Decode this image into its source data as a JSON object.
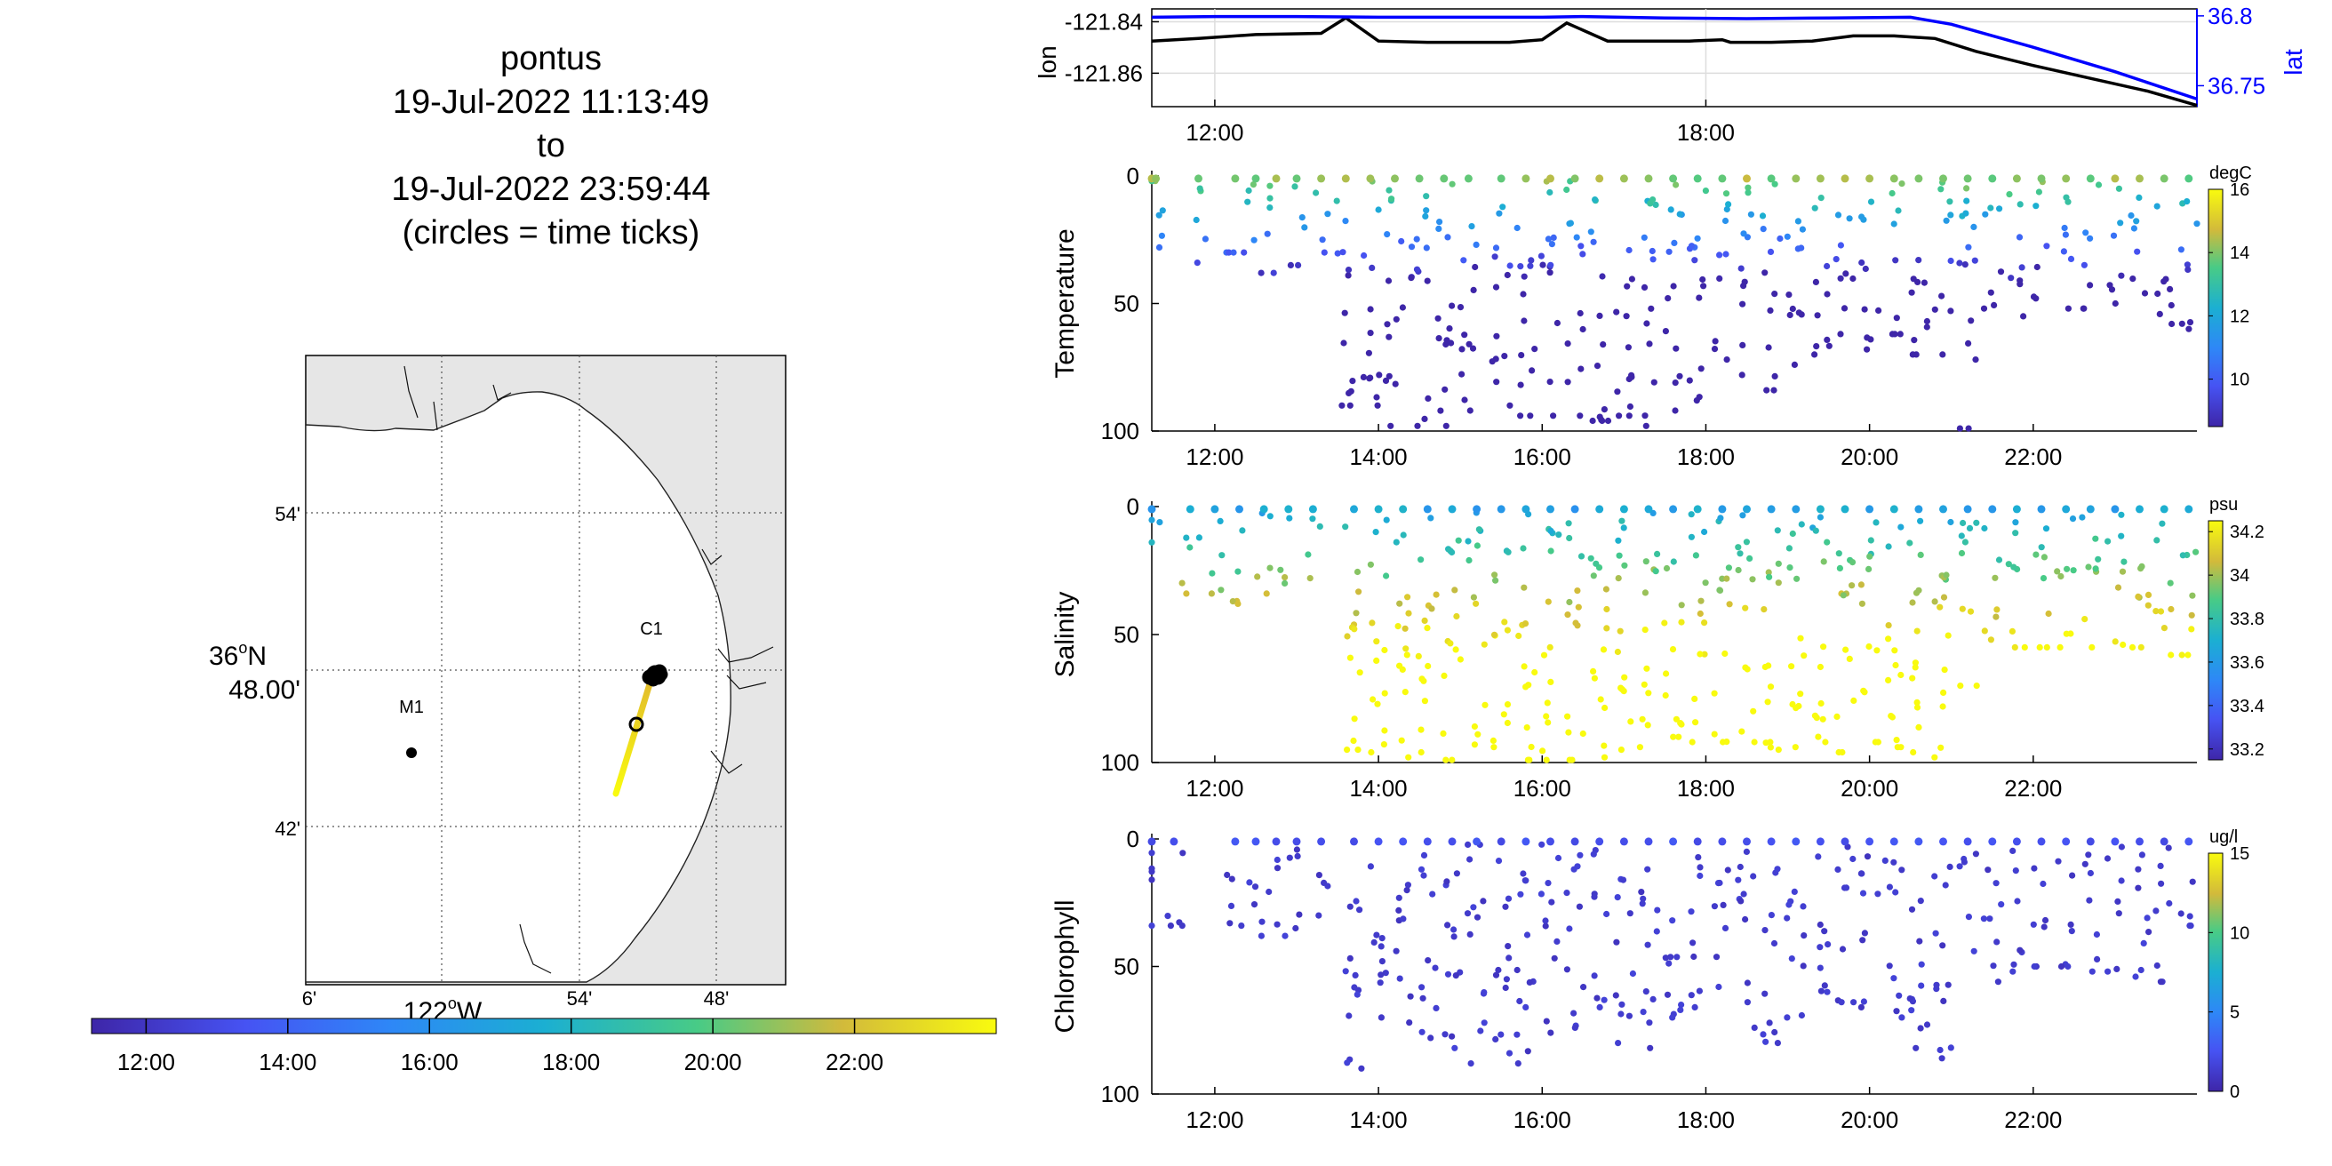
{
  "title": {
    "line1": "pontus",
    "line2": "19-Jul-2022 11:13:49",
    "line3": "to",
    "line4": "19-Jul-2022 23:59:44",
    "line5": "(circles = time ticks)"
  },
  "map": {
    "lat_labels": [
      "54'",
      "36°N 48.00'",
      "42'"
    ],
    "lat_label_main": "36",
    "lat_label_deg": "o",
    "lat_label_n": "N",
    "lat_label_min": "48.00'",
    "lon_labels": [
      "6'",
      "54'",
      "48'"
    ],
    "lon_label_main": "122",
    "lon_label_deg": "o",
    "lon_label_w": "W",
    "stations": [
      {
        "name": "M1"
      },
      {
        "name": "C1"
      }
    ],
    "colors": {
      "land": "#e6e6e6",
      "water": "#ffffff",
      "track_start": "#e1b92e",
      "track_end": "#f9fb0e"
    }
  },
  "time_colorbar": {
    "ticks": [
      "12:00",
      "14:00",
      "16:00",
      "18:00",
      "20:00",
      "22:00"
    ],
    "colormap": "parula"
  },
  "chart_data": [
    {
      "type": "line",
      "name": "position",
      "x_ticks": [
        "12:00",
        "18:00"
      ],
      "xlim_hours": [
        11.23,
        24.0
      ],
      "left_axis": {
        "label": "lon",
        "ticks": [
          "-121.84",
          "-121.86"
        ],
        "ylim": [
          -121.873,
          -121.835
        ]
      },
      "right_axis": {
        "label": "lat",
        "ticks": [
          "36.8",
          "36.75"
        ],
        "ylim": [
          36.735,
          36.805
        ],
        "color": "#0000ff"
      },
      "series": [
        {
          "name": "lon",
          "color": "#000000",
          "x": [
            11.23,
            11.8,
            12.5,
            13.3,
            13.6,
            14.0,
            14.6,
            15.1,
            15.6,
            16.0,
            16.3,
            16.8,
            17.3,
            17.8,
            18.2,
            18.3,
            18.8,
            19.3,
            19.8,
            20.3,
            20.8,
            21.3,
            22.0,
            22.7,
            23.4,
            24.0
          ],
          "y": [
            -121.8475,
            -121.8465,
            -121.845,
            -121.8445,
            -121.8385,
            -121.8475,
            -121.848,
            -121.848,
            -121.848,
            -121.847,
            -121.8405,
            -121.8475,
            -121.8475,
            -121.8475,
            -121.847,
            -121.848,
            -121.848,
            -121.8475,
            -121.8455,
            -121.8455,
            -121.8465,
            -121.8515,
            -121.857,
            -121.862,
            -121.867,
            -121.8725
          ]
        },
        {
          "name": "lat",
          "color": "#0000ff",
          "x": [
            11.23,
            12.0,
            13.0,
            14.0,
            15.0,
            16.0,
            16.5,
            17.5,
            18.5,
            19.5,
            20.5,
            21.0,
            22.0,
            23.0,
            24.0
          ],
          "y": [
            36.799,
            36.7995,
            36.7995,
            36.799,
            36.799,
            36.799,
            36.7995,
            36.7985,
            36.798,
            36.7985,
            36.799,
            36.794,
            36.7775,
            36.76,
            36.7405
          ]
        }
      ]
    },
    {
      "type": "scatter",
      "name": "Temperature",
      "ylabel": "Temperature",
      "unit": "degC",
      "y_ticks": [
        "0",
        "50",
        "100"
      ],
      "ylim": [
        0,
        100
      ],
      "y_reversed": true,
      "x_ticks": [
        "12:00",
        "14:00",
        "16:00",
        "18:00",
        "20:00",
        "22:00"
      ],
      "xlim_hours": [
        11.23,
        24.0
      ],
      "colorbar": {
        "ticks": [
          "16",
          "14",
          "12",
          "10"
        ],
        "clim": [
          8.5,
          16
        ]
      },
      "sampling": "yo-yo depth profiles: near-surface warm (~15 degC), cooling to ~9 degC at depth",
      "columns": [
        {
          "t": 11.23,
          "max_depth": 2
        },
        {
          "t": 11.28,
          "max_depth": 28
        },
        {
          "t": 11.8,
          "max_depth": 34
        },
        {
          "t": 12.25,
          "max_depth": 30
        },
        {
          "t": 12.5,
          "max_depth": 38
        },
        {
          "t": 12.75,
          "max_depth": 38
        },
        {
          "t": 13.0,
          "max_depth": 35
        },
        {
          "t": 13.3,
          "max_depth": 30
        },
        {
          "t": 13.6,
          "max_depth": 90
        },
        {
          "t": 13.9,
          "max_depth": 90
        },
        {
          "t": 14.2,
          "max_depth": 98
        },
        {
          "t": 14.5,
          "max_depth": 98
        },
        {
          "t": 14.8,
          "max_depth": 98
        },
        {
          "t": 15.1,
          "max_depth": 92
        },
        {
          "t": 15.5,
          "max_depth": 90
        },
        {
          "t": 15.8,
          "max_depth": 94
        },
        {
          "t": 16.1,
          "max_depth": 94
        },
        {
          "t": 16.4,
          "max_depth": 94
        },
        {
          "t": 16.7,
          "max_depth": 96
        },
        {
          "t": 17.0,
          "max_depth": 94
        },
        {
          "t": 17.3,
          "max_depth": 98
        },
        {
          "t": 17.6,
          "max_depth": 92
        },
        {
          "t": 17.9,
          "max_depth": 88
        },
        {
          "t": 18.2,
          "max_depth": 72
        },
        {
          "t": 18.5,
          "max_depth": 78
        },
        {
          "t": 18.8,
          "max_depth": 84
        },
        {
          "t": 19.1,
          "max_depth": 74
        },
        {
          "t": 19.4,
          "max_depth": 70
        },
        {
          "t": 19.7,
          "max_depth": 62
        },
        {
          "t": 20.0,
          "max_depth": 68
        },
        {
          "t": 20.3,
          "max_depth": 62
        },
        {
          "t": 20.6,
          "max_depth": 70
        },
        {
          "t": 20.9,
          "max_depth": 70
        },
        {
          "t": 21.2,
          "max_depth": 99
        },
        {
          "t": 21.5,
          "max_depth": 52
        },
        {
          "t": 21.8,
          "max_depth": 55
        },
        {
          "t": 22.1,
          "max_depth": 48
        },
        {
          "t": 22.4,
          "max_depth": 52
        },
        {
          "t": 22.7,
          "max_depth": 52
        },
        {
          "t": 23.0,
          "max_depth": 50
        },
        {
          "t": 23.3,
          "max_depth": 46
        },
        {
          "t": 23.6,
          "max_depth": 58
        },
        {
          "t": 23.9,
          "max_depth": 60
        }
      ]
    },
    {
      "type": "scatter",
      "name": "Salinity",
      "ylabel": "Salinity",
      "unit": "psu",
      "y_ticks": [
        "0",
        "50",
        "100"
      ],
      "ylim": [
        0,
        100
      ],
      "y_reversed": true,
      "x_ticks": [
        "12:00",
        "14:00",
        "16:00",
        "18:00",
        "20:00",
        "22:00"
      ],
      "xlim_hours": [
        11.23,
        24.0
      ],
      "colorbar": {
        "ticks": [
          "34.2",
          "34",
          "33.8",
          "33.6",
          "33.4",
          "33.2"
        ],
        "clim": [
          33.15,
          34.25
        ]
      },
      "sampling": "near-surface ~33.7 psu, increasing to ~34.1 psu at depth",
      "columns": [
        {
          "t": 11.23,
          "max_depth": 14
        },
        {
          "t": 11.7,
          "max_depth": 34
        },
        {
          "t": 12.0,
          "max_depth": 34
        },
        {
          "t": 12.3,
          "max_depth": 38
        },
        {
          "t": 12.6,
          "max_depth": 34
        },
        {
          "t": 12.9,
          "max_depth": 30
        },
        {
          "t": 13.2,
          "max_depth": 28
        },
        {
          "t": 13.7,
          "max_depth": 95
        },
        {
          "t": 14.0,
          "max_depth": 96
        },
        {
          "t": 14.3,
          "max_depth": 98
        },
        {
          "t": 14.6,
          "max_depth": 96
        },
        {
          "t": 14.9,
          "max_depth": 99
        },
        {
          "t": 15.2,
          "max_depth": 93
        },
        {
          "t": 15.5,
          "max_depth": 94
        },
        {
          "t": 15.8,
          "max_depth": 99
        },
        {
          "t": 16.1,
          "max_depth": 99
        },
        {
          "t": 16.4,
          "max_depth": 99
        },
        {
          "t": 16.7,
          "max_depth": 98
        },
        {
          "t": 17.0,
          "max_depth": 95
        },
        {
          "t": 17.3,
          "max_depth": 94
        },
        {
          "t": 17.6,
          "max_depth": 90
        },
        {
          "t": 17.9,
          "max_depth": 92
        },
        {
          "t": 18.2,
          "max_depth": 92
        },
        {
          "t": 18.5,
          "max_depth": 92
        },
        {
          "t": 18.8,
          "max_depth": 95
        },
        {
          "t": 19.1,
          "max_depth": 94
        },
        {
          "t": 19.4,
          "max_depth": 92
        },
        {
          "t": 19.7,
          "max_depth": 96
        },
        {
          "t": 20.0,
          "max_depth": 92
        },
        {
          "t": 20.3,
          "max_depth": 94
        },
        {
          "t": 20.6,
          "max_depth": 96
        },
        {
          "t": 20.9,
          "max_depth": 98
        },
        {
          "t": 21.2,
          "max_depth": 70
        },
        {
          "t": 21.5,
          "max_depth": 52
        },
        {
          "t": 21.8,
          "max_depth": 55
        },
        {
          "t": 22.1,
          "max_depth": 55
        },
        {
          "t": 22.4,
          "max_depth": 55
        },
        {
          "t": 22.7,
          "max_depth": 55
        },
        {
          "t": 23.0,
          "max_depth": 54
        },
        {
          "t": 23.3,
          "max_depth": 55
        },
        {
          "t": 23.6,
          "max_depth": 58
        },
        {
          "t": 23.9,
          "max_depth": 58
        }
      ]
    },
    {
      "type": "scatter",
      "name": "Chlorophyll",
      "ylabel": "Chlorophyll",
      "unit": "ug/l",
      "y_ticks": [
        "0",
        "50",
        "100"
      ],
      "ylim": [
        0,
        100
      ],
      "y_reversed": true,
      "x_ticks": [
        "12:00",
        "14:00",
        "16:00",
        "18:00",
        "20:00",
        "22:00"
      ],
      "xlim_hours": [
        11.23,
        24.0
      ],
      "colorbar": {
        "ticks": [
          "15",
          "10",
          "5",
          "0"
        ],
        "clim": [
          0,
          15
        ]
      },
      "sampling": "low values (~1-2 ug/l) at all depths",
      "columns": [
        {
          "t": 11.23,
          "max_depth": 34
        },
        {
          "t": 11.5,
          "max_depth": 34
        },
        {
          "t": 12.25,
          "max_depth": 34
        },
        {
          "t": 12.5,
          "max_depth": 38
        },
        {
          "t": 12.75,
          "max_depth": 38
        },
        {
          "t": 13.0,
          "max_depth": 35
        },
        {
          "t": 13.3,
          "max_depth": 30
        },
        {
          "t": 13.7,
          "max_depth": 90
        },
        {
          "t": 14.0,
          "max_depth": 70
        },
        {
          "t": 14.3,
          "max_depth": 72
        },
        {
          "t": 14.6,
          "max_depth": 78
        },
        {
          "t": 14.9,
          "max_depth": 82
        },
        {
          "t": 15.2,
          "max_depth": 88
        },
        {
          "t": 15.5,
          "max_depth": 84
        },
        {
          "t": 15.8,
          "max_depth": 88
        },
        {
          "t": 16.1,
          "max_depth": 76
        },
        {
          "t": 16.4,
          "max_depth": 74
        },
        {
          "t": 16.7,
          "max_depth": 66
        },
        {
          "t": 17.0,
          "max_depth": 80
        },
        {
          "t": 17.3,
          "max_depth": 82
        },
        {
          "t": 17.6,
          "max_depth": 70
        },
        {
          "t": 17.9,
          "max_depth": 66
        },
        {
          "t": 18.2,
          "max_depth": 58
        },
        {
          "t": 18.5,
          "max_depth": 74
        },
        {
          "t": 18.8,
          "max_depth": 80
        },
        {
          "t": 19.1,
          "max_depth": 70
        },
        {
          "t": 19.4,
          "max_depth": 60
        },
        {
          "t": 19.7,
          "max_depth": 64
        },
        {
          "t": 20.0,
          "max_depth": 66
        },
        {
          "t": 20.3,
          "max_depth": 70
        },
        {
          "t": 20.6,
          "max_depth": 82
        },
        {
          "t": 20.9,
          "max_depth": 86
        },
        {
          "t": 21.2,
          "max_depth": 44
        },
        {
          "t": 21.5,
          "max_depth": 56
        },
        {
          "t": 21.8,
          "max_depth": 52
        },
        {
          "t": 22.1,
          "max_depth": 50
        },
        {
          "t": 22.4,
          "max_depth": 50
        },
        {
          "t": 22.7,
          "max_depth": 52
        },
        {
          "t": 23.0,
          "max_depth": 52
        },
        {
          "t": 23.3,
          "max_depth": 54
        },
        {
          "t": 23.6,
          "max_depth": 56
        },
        {
          "t": 23.9,
          "max_depth": 34
        }
      ]
    }
  ]
}
